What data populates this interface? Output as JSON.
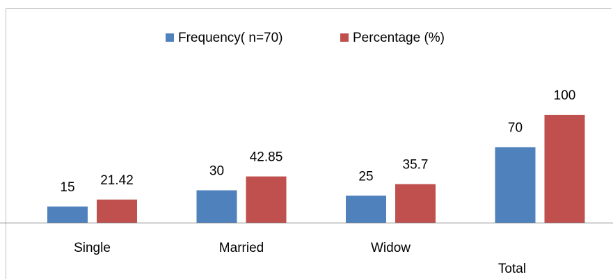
{
  "chart_data": {
    "type": "bar",
    "categories": [
      "Single",
      "Married",
      "Widow",
      "Total"
    ],
    "series": [
      {
        "name": "Frequency( n=70)",
        "color": "#4f81bd",
        "values": [
          15,
          30,
          25,
          70
        ]
      },
      {
        "name": "Percentage (%)",
        "color": "#c0504d",
        "values": [
          21.42,
          42.85,
          35.7,
          100
        ]
      }
    ],
    "ylim": [
      0,
      100
    ],
    "legend": "top"
  }
}
